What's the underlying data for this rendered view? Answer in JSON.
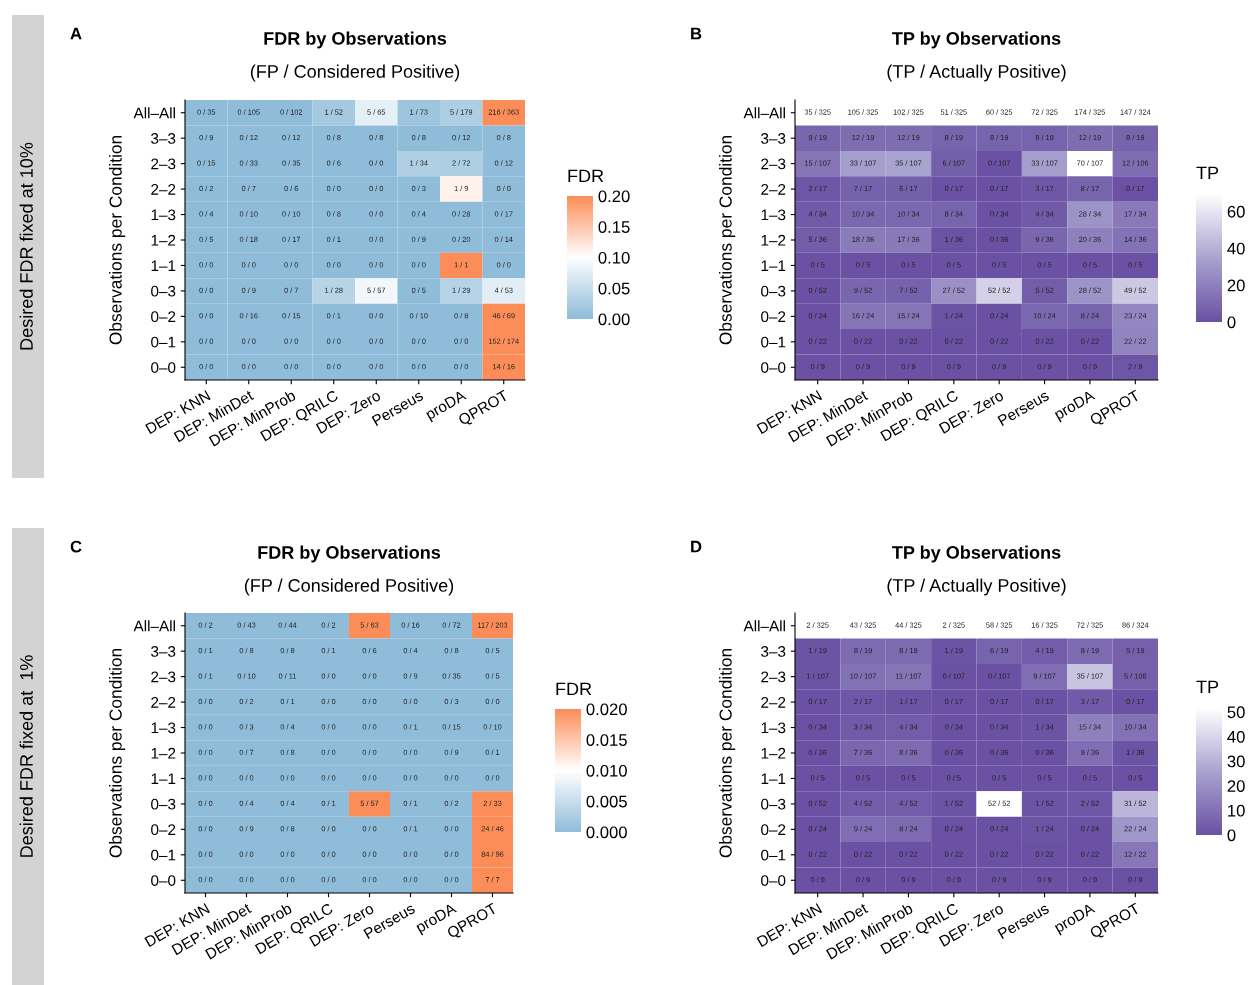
{
  "chart_data": [
    {
      "type": "heatmap",
      "title": "FDR by Observations",
      "subtitle": "(FP / Considered Positive)",
      "ylabel": "Observations per Condition",
      "clabel": "FDR",
      "annotations": [
        "A",
        "Desired FDR fixed at 10%"
      ],
      "categories": [
        "DEP: KNN",
        "DEP: MinDet",
        "DEP: MinProb",
        "DEP: QRILC",
        "DEP: Zero",
        "Perseus",
        "proDA",
        "QPROT"
      ],
      "y_categories": [
        "All–All",
        "3–3",
        "2–3",
        "2–2",
        "1–3",
        "1–2",
        "1–1",
        "0–3",
        "0–2",
        "0–1",
        "0–0"
      ],
      "colors": [
        "#8fbcd9",
        "#ffffff",
        "#fc8d59"
      ],
      "clim": [
        0,
        0.2
      ],
      "cticks": [
        {
          "value": 0,
          "label": "0.00"
        },
        {
          "value": 0.05,
          "label": "0.05"
        },
        {
          "value": 0.1,
          "label": "0.10"
        },
        {
          "value": 0.15,
          "label": "0.15"
        },
        {
          "value": 0.2,
          "label": "0.20"
        }
      ],
      "cells": [
        [
          0,
          0,
          0,
          0.019,
          0.077,
          0.014,
          0.028,
          0.595
        ],
        [
          0,
          0,
          0,
          0,
          0,
          0,
          0,
          0
        ],
        [
          0,
          0,
          0,
          0,
          0,
          0.029,
          0.028,
          0
        ],
        [
          0,
          0,
          0,
          0,
          0,
          0,
          0.111,
          0
        ],
        [
          0,
          0,
          0,
          0,
          0,
          0,
          0,
          0
        ],
        [
          0,
          0,
          0,
          0,
          0,
          0,
          0,
          0
        ],
        [
          0,
          0,
          0,
          0,
          0,
          0,
          1,
          0
        ],
        [
          0,
          0,
          0,
          0.036,
          0.088,
          0,
          0.034,
          0.075
        ],
        [
          0,
          0,
          0,
          0,
          0,
          0,
          0,
          0.667
        ],
        [
          0,
          0,
          0,
          0,
          0,
          0,
          0,
          0.874
        ],
        [
          0,
          0,
          0,
          0,
          0,
          0,
          0,
          0.875
        ]
      ],
      "cell_labels": [
        [
          "0 / 35",
          "0 / 105",
          "0 / 102",
          "1 / 52",
          "5 / 65",
          "1 / 73",
          "5 / 179",
          "216 / 363"
        ],
        [
          "0 / 9",
          "0 / 12",
          "0 / 12",
          "0 / 8",
          "0 / 8",
          "0 / 8",
          "0 / 12",
          "0 / 8"
        ],
        [
          "0 / 15",
          "0 / 33",
          "0 / 35",
          "0 / 6",
          "0 / 0",
          "1 / 34",
          "2 / 72",
          "0 / 12"
        ],
        [
          "0 / 2",
          "0 / 7",
          "0 / 6",
          "0 / 0",
          "0 / 0",
          "0 / 3",
          "1 / 9",
          "0 / 0"
        ],
        [
          "0 / 4",
          "0 / 10",
          "0 / 10",
          "0 / 8",
          "0 / 0",
          "0 / 4",
          "0 / 28",
          "0 / 17"
        ],
        [
          "0 / 5",
          "0 / 18",
          "0 / 17",
          "0 / 1",
          "0 / 0",
          "0 / 9",
          "0 / 20",
          "0 / 14"
        ],
        [
          "0 / 0",
          "0 / 0",
          "0 / 0",
          "0 / 0",
          "0 / 0",
          "0 / 0",
          "1 / 1",
          "0 / 0"
        ],
        [
          "0 / 0",
          "0 / 9",
          "0 / 7",
          "1 / 28",
          "5 / 57",
          "0 / 5",
          "1 / 29",
          "4 / 53"
        ],
        [
          "0 / 0",
          "0 / 16",
          "0 / 15",
          "0 / 1",
          "0 / 0",
          "0 / 10",
          "0 / 8",
          "46 / 69"
        ],
        [
          "0 / 0",
          "0 / 0",
          "0 / 0",
          "0 / 0",
          "0 / 0",
          "0 / 0",
          "0 / 0",
          "152 / 174"
        ],
        [
          "0 / 0",
          "0 / 0",
          "0 / 0",
          "0 / 0",
          "0 / 0",
          "0 / 0",
          "0 / 0",
          "14 / 16"
        ]
      ]
    },
    {
      "type": "heatmap",
      "title": "TP by Observations",
      "subtitle": "(TP / Actually Positive)",
      "ylabel": "Observations per Condition",
      "clabel": "TP",
      "annotations": [
        "B"
      ],
      "categories": [
        "DEP: KNN",
        "DEP: MinDet",
        "DEP: MinProb",
        "DEP: QRILC",
        "DEP: Zero",
        "Perseus",
        "proDA",
        "QPROT"
      ],
      "y_categories": [
        "All–All",
        "3–3",
        "2–3",
        "2–2",
        "1–3",
        "1–2",
        "1–1",
        "0–3",
        "0–2",
        "0–1",
        "0–0"
      ],
      "colors": [
        "#6a51a3",
        "#a9a3d0",
        "#ffffff"
      ],
      "clim": [
        0,
        70
      ],
      "cticks": [
        0,
        20,
        40,
        60
      ],
      "cells": [
        [
          null,
          null,
          null,
          null,
          null,
          null,
          null,
          null
        ],
        [
          9,
          12,
          12,
          8,
          8,
          8,
          12,
          8
        ],
        [
          15,
          33,
          35,
          6,
          0,
          33,
          70,
          12
        ],
        [
          2,
          7,
          6,
          0,
          0,
          3,
          8,
          0
        ],
        [
          4,
          10,
          10,
          8,
          0,
          4,
          28,
          17
        ],
        [
          5,
          18,
          17,
          1,
          0,
          9,
          20,
          14
        ],
        [
          0,
          0,
          0,
          0,
          0,
          0,
          0,
          0
        ],
        [
          0,
          9,
          7,
          27,
          52,
          5,
          28,
          49
        ],
        [
          0,
          16,
          15,
          1,
          0,
          10,
          8,
          23
        ],
        [
          0,
          0,
          0,
          0,
          0,
          0,
          0,
          22
        ],
        [
          0,
          0,
          0,
          0,
          0,
          0,
          0,
          2
        ]
      ],
      "cell_labels": [
        [
          "35 / 325",
          "105 / 325",
          "102 / 325",
          "51 / 325",
          "60 / 325",
          "72 / 325",
          "174 / 325",
          "147 / 324"
        ],
        [
          "9 / 19",
          "12 / 19",
          "12 / 19",
          "8 / 19",
          "8 / 19",
          "8 / 19",
          "12 / 19",
          "8 / 19"
        ],
        [
          "15 / 107",
          "33 / 107",
          "35 / 107",
          "6 / 107",
          "0 / 107",
          "33 / 107",
          "70 / 107",
          "12 / 106"
        ],
        [
          "2 / 17",
          "7 / 17",
          "6 / 17",
          "0 / 17",
          "0 / 17",
          "3 / 17",
          "8 / 17",
          "0 / 17"
        ],
        [
          "4 / 34",
          "10 / 34",
          "10 / 34",
          "8 / 34",
          "0 / 34",
          "4 / 34",
          "28 / 34",
          "17 / 34"
        ],
        [
          "5 / 36",
          "18 / 36",
          "17 / 36",
          "1 / 36",
          "0 / 36",
          "9 / 36",
          "20 / 36",
          "14 / 36"
        ],
        [
          "0 / 5",
          "0 / 5",
          "0 / 5",
          "0 / 5",
          "0 / 5",
          "0 / 5",
          "0 / 5",
          "0 / 5"
        ],
        [
          "0 / 52",
          "9 / 52",
          "7 / 52",
          "27 / 52",
          "52 / 52",
          "5 / 52",
          "28 / 52",
          "49 / 52"
        ],
        [
          "0 / 24",
          "16 / 24",
          "15 / 24",
          "1 / 24",
          "0 / 24",
          "10 / 24",
          "8 / 24",
          "23 / 24"
        ],
        [
          "0 / 22",
          "0 / 22",
          "0 / 22",
          "0 / 22",
          "0 / 22",
          "0 / 22",
          "0 / 22",
          "22 / 22"
        ],
        [
          "0 / 9",
          "0 / 9",
          "0 / 9",
          "0 / 9",
          "0 / 9",
          "0 / 9",
          "0 / 9",
          "2 / 9"
        ]
      ]
    },
    {
      "type": "heatmap",
      "title": "FDR by Observations",
      "subtitle": "(FP / Considered Positive)",
      "ylabel": "Observations per Condition",
      "clabel": "FDR",
      "annotations": [
        "C",
        "Desired FDR fixed at  1%"
      ],
      "categories": [
        "DEP: KNN",
        "DEP: MinDet",
        "DEP: MinProb",
        "DEP: QRILC",
        "DEP: Zero",
        "Perseus",
        "proDA",
        "QPROT"
      ],
      "y_categories": [
        "All–All",
        "3–3",
        "2–3",
        "2–2",
        "1–3",
        "1–2",
        "1–1",
        "0–3",
        "0–2",
        "0–1",
        "0–0"
      ],
      "colors": [
        "#8fbcd9",
        "#ffffff",
        "#fc8d59"
      ],
      "clim": [
        0,
        0.02
      ],
      "cticks": [
        {
          "value": 0,
          "label": "0.000"
        },
        {
          "value": 0.005,
          "label": "0.005"
        },
        {
          "value": 0.01,
          "label": "0.010"
        },
        {
          "value": 0.015,
          "label": "0.015"
        },
        {
          "value": 0.02,
          "label": "0.020"
        }
      ],
      "cells": [
        [
          0,
          0,
          0,
          0,
          0.079,
          0,
          0,
          0.576
        ],
        [
          0,
          0,
          0,
          0,
          0,
          0,
          0,
          0
        ],
        [
          0,
          0,
          0,
          0,
          0,
          0,
          0,
          0
        ],
        [
          0,
          0,
          0,
          0,
          0,
          0,
          0,
          0
        ],
        [
          0,
          0,
          0,
          0,
          0,
          0,
          0,
          0
        ],
        [
          0,
          0,
          0,
          0,
          0,
          0,
          0,
          0
        ],
        [
          0,
          0,
          0,
          0,
          0,
          0,
          0,
          0
        ],
        [
          0,
          0,
          0,
          0,
          0.088,
          0,
          0,
          0.061
        ],
        [
          0,
          0,
          0,
          0,
          0,
          0,
          0,
          0.522
        ],
        [
          0,
          0,
          0,
          0,
          0,
          0,
          0,
          0.875
        ],
        [
          0,
          0,
          0,
          0,
          0,
          0,
          0,
          1
        ]
      ],
      "cell_labels": [
        [
          "0 / 2",
          "0 / 43",
          "0 / 44",
          "0 / 2",
          "5 / 63",
          "0 / 16",
          "0 / 72",
          "117 / 203"
        ],
        [
          "0 / 1",
          "0 / 8",
          "0 / 8",
          "0 / 1",
          "0 / 6",
          "0 / 4",
          "0 / 8",
          "0 / 5"
        ],
        [
          "0 / 1",
          "0 / 10",
          "0 / 11",
          "0 / 0",
          "0 / 0",
          "0 / 9",
          "0 / 35",
          "0 / 5"
        ],
        [
          "0 / 0",
          "0 / 2",
          "0 / 1",
          "0 / 0",
          "0 / 0",
          "0 / 0",
          "0 / 3",
          "0 / 0"
        ],
        [
          "0 / 0",
          "0 / 3",
          "0 / 4",
          "0 / 0",
          "0 / 0",
          "0 / 1",
          "0 / 15",
          "0 / 10"
        ],
        [
          "0 / 0",
          "0 / 7",
          "0 / 8",
          "0 / 0",
          "0 / 0",
          "0 / 0",
          "0 / 9",
          "0 / 1"
        ],
        [
          "0 / 0",
          "0 / 0",
          "0 / 0",
          "0 / 0",
          "0 / 0",
          "0 / 0",
          "0 / 0",
          "0 / 0"
        ],
        [
          "0 / 0",
          "0 / 4",
          "0 / 4",
          "0 / 1",
          "5 / 57",
          "0 / 1",
          "0 / 2",
          "2 / 33"
        ],
        [
          "0 / 0",
          "0 / 9",
          "0 / 8",
          "0 / 0",
          "0 / 0",
          "0 / 1",
          "0 / 0",
          "24 / 46"
        ],
        [
          "0 / 0",
          "0 / 0",
          "0 / 0",
          "0 / 0",
          "0 / 0",
          "0 / 0",
          "0 / 0",
          "84 / 96"
        ],
        [
          "0 / 0",
          "0 / 0",
          "0 / 0",
          "0 / 0",
          "0 / 0",
          "0 / 0",
          "0 / 0",
          "7 / 7"
        ]
      ]
    },
    {
      "type": "heatmap",
      "title": "TP by Observations",
      "subtitle": "(TP / Actually Positive)",
      "ylabel": "Observations per Condition",
      "clabel": "TP",
      "annotations": [
        "D"
      ],
      "categories": [
        "DEP: KNN",
        "DEP: MinDet",
        "DEP: MinProb",
        "DEP: QRILC",
        "DEP: Zero",
        "Perseus",
        "proDA",
        "QPROT"
      ],
      "y_categories": [
        "All–All",
        "3–3",
        "2–3",
        "2–2",
        "1–3",
        "1–2",
        "1–1",
        "0–3",
        "0–2",
        "0–1",
        "0–0"
      ],
      "colors": [
        "#6a51a3",
        "#a9a3d0",
        "#ffffff"
      ],
      "clim": [
        0,
        52
      ],
      "cticks": [
        0,
        10,
        20,
        30,
        40,
        50
      ],
      "cells": [
        [
          null,
          null,
          null,
          null,
          null,
          null,
          null,
          null
        ],
        [
          1,
          8,
          8,
          1,
          6,
          4,
          8,
          5
        ],
        [
          1,
          10,
          11,
          0,
          0,
          9,
          35,
          5
        ],
        [
          0,
          2,
          1,
          0,
          0,
          0,
          3,
          0
        ],
        [
          0,
          3,
          4,
          0,
          0,
          1,
          15,
          10
        ],
        [
          0,
          7,
          8,
          0,
          0,
          0,
          9,
          1
        ],
        [
          0,
          0,
          0,
          0,
          0,
          0,
          0,
          0
        ],
        [
          0,
          4,
          4,
          1,
          52,
          1,
          2,
          31
        ],
        [
          0,
          9,
          8,
          0,
          0,
          1,
          0,
          22
        ],
        [
          0,
          0,
          0,
          0,
          0,
          0,
          0,
          12
        ],
        [
          0,
          0,
          0,
          0,
          0,
          0,
          0,
          0
        ]
      ],
      "cell_labels": [
        [
          "2 / 325",
          "43 / 325",
          "44 / 325",
          "2 / 325",
          "58 / 325",
          "16 / 325",
          "72 / 325",
          "86 / 324"
        ],
        [
          "1 / 19",
          "8 / 19",
          "8 / 19",
          "1 / 19",
          "6 / 19",
          "4 / 19",
          "8 / 19",
          "5 / 19"
        ],
        [
          "1 / 107",
          "10 / 107",
          "11 / 107",
          "0 / 107",
          "0 / 107",
          "9 / 107",
          "35 / 107",
          "5 / 106"
        ],
        [
          "0 / 17",
          "2 / 17",
          "1 / 17",
          "0 / 17",
          "0 / 17",
          "0 / 17",
          "3 / 17",
          "0 / 17"
        ],
        [
          "0 / 34",
          "3 / 34",
          "4 / 34",
          "0 / 34",
          "0 / 34",
          "1 / 34",
          "15 / 34",
          "10 / 34"
        ],
        [
          "0 / 36",
          "7 / 36",
          "8 / 36",
          "0 / 36",
          "0 / 36",
          "0 / 36",
          "9 / 36",
          "1 / 36"
        ],
        [
          "0 / 5",
          "0 / 5",
          "0 / 5",
          "0 / 5",
          "0 / 5",
          "0 / 5",
          "0 / 5",
          "0 / 5"
        ],
        [
          "0 / 52",
          "4 / 52",
          "4 / 52",
          "1 / 52",
          "52 / 52",
          "1 / 52",
          "2 / 52",
          "31 / 52"
        ],
        [
          "0 / 24",
          "9 / 24",
          "8 / 24",
          "0 / 24",
          "0 / 24",
          "1 / 24",
          "0 / 24",
          "22 / 24"
        ],
        [
          "0 / 22",
          "0 / 22",
          "0 / 22",
          "0 / 22",
          "0 / 22",
          "0 / 22",
          "0 / 22",
          "12 / 22"
        ],
        [
          "0 / 9",
          "0 / 9",
          "0 / 9",
          "0 / 9",
          "0 / 9",
          "0 / 9",
          "0 / 9",
          "0 / 9"
        ]
      ]
    }
  ]
}
